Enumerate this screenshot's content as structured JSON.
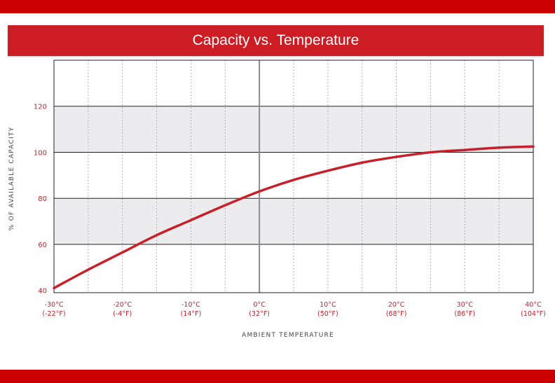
{
  "page": {
    "accent_color": "#cc0000",
    "banner_color": "#cc1c24"
  },
  "chart_data": {
    "type": "line",
    "title": "Capacity vs. Temperature",
    "xlabel": "AMBIENT TEMPERATURE",
    "ylabel": "% OF AVAILABLE CAPACITY",
    "xlim": [
      -30,
      40
    ],
    "ylim": [
      39,
      140
    ],
    "x_ticks": [
      {
        "value": -30,
        "label": "-30°C",
        "sublabel": "(-22°F)"
      },
      {
        "value": -20,
        "label": "-20°C",
        "sublabel": "(-4°F)"
      },
      {
        "value": -10,
        "label": "-10°C",
        "sublabel": "(14°F)"
      },
      {
        "value": 0,
        "label": "0°C",
        "sublabel": "(32°F)"
      },
      {
        "value": 10,
        "label": "10°C",
        "sublabel": "(50°F)"
      },
      {
        "value": 20,
        "label": "20°C",
        "sublabel": "(68°F)"
      },
      {
        "value": 30,
        "label": "30°C",
        "sublabel": "(86°F)"
      },
      {
        "value": 40,
        "label": "40°C",
        "sublabel": "(104°F)"
      }
    ],
    "y_ticks": [
      40,
      60,
      80,
      100,
      120
    ],
    "shaded_bands": [
      [
        60,
        80
      ],
      [
        100,
        120
      ]
    ],
    "grid": true,
    "line_color": "#c8202a",
    "band_color": "#ececef",
    "series": [
      {
        "x": [
          -30,
          -25,
          -20,
          -15,
          -10,
          -5,
          0,
          5,
          10,
          15,
          20,
          25,
          30,
          35,
          40
        ],
        "values": [
          41,
          49,
          56.5,
          64,
          70.5,
          77,
          83,
          88,
          92,
          95.5,
          98,
          100,
          101,
          102,
          102.5
        ]
      }
    ]
  }
}
